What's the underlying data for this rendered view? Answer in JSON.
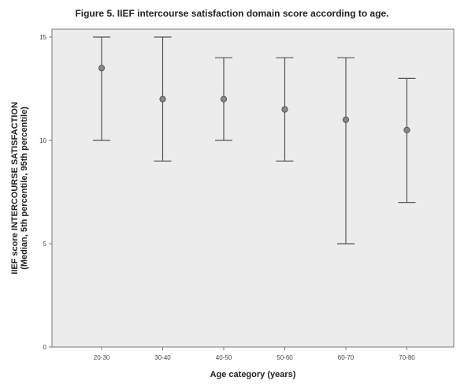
{
  "chart_data": {
    "type": "errorbar",
    "title": "Figure 5. IIEF intercourse satisfaction domain score according to age.",
    "xlabel": "Age category (years)",
    "ylabel_line1": "IIEF score INTERCOURSE SATISFACTION",
    "ylabel_line2": "(Median, 5th percentile, 95th percentile)",
    "ylim": [
      0,
      15
    ],
    "yticks": [
      0,
      5,
      10,
      15
    ],
    "grid": false,
    "categories": [
      "20-30",
      "30-40",
      "40-50",
      "50-60",
      "60-70",
      "70-80"
    ],
    "series": [
      {
        "median": [
          13.5,
          12,
          12,
          11.5,
          11,
          10.5
        ],
        "p5": [
          10,
          9,
          10,
          9,
          5,
          7
        ],
        "p95": [
          15,
          15,
          14,
          14,
          14,
          13
        ]
      }
    ],
    "colors": {
      "plot_bg": "#ececec",
      "marks": "#555555",
      "frame": "#777777"
    }
  }
}
